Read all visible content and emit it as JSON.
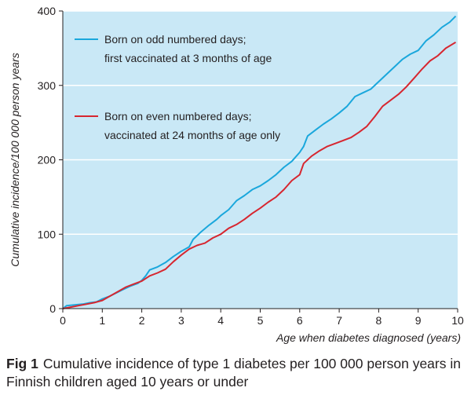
{
  "chart_data": {
    "type": "line",
    "title": "",
    "xlabel": "Age when diabetes diagnosed (years)",
    "ylabel": "Cumulative incidence/100 000 person years",
    "xlim": [
      0,
      10
    ],
    "ylim": [
      0,
      400
    ],
    "x_ticks": [
      0,
      1,
      2,
      3,
      4,
      5,
      6,
      7,
      8,
      9,
      10
    ],
    "y_ticks": [
      0,
      100,
      200,
      300,
      400
    ],
    "grid": "horizontal",
    "legend_placement": "top-left",
    "background_color": "#c9e8f6",
    "series": [
      {
        "name": "Born on odd numbered days; first vaccinated at 3 months of age",
        "legend_lines": [
          "Born on odd numbered days;",
          "first vaccinated at 3 months of age"
        ],
        "color": "#1aa7dc",
        "points": [
          [
            0,
            0
          ],
          [
            0.1,
            4
          ],
          [
            0.3,
            5
          ],
          [
            0.5,
            6
          ],
          [
            0.7,
            8
          ],
          [
            0.85,
            9
          ],
          [
            1.0,
            13
          ],
          [
            1.2,
            17
          ],
          [
            1.5,
            25
          ],
          [
            1.7,
            30
          ],
          [
            1.9,
            34
          ],
          [
            2.0,
            38
          ],
          [
            2.1,
            44
          ],
          [
            2.2,
            52
          ],
          [
            2.4,
            56
          ],
          [
            2.6,
            62
          ],
          [
            2.8,
            70
          ],
          [
            3.0,
            77
          ],
          [
            3.2,
            83
          ],
          [
            3.3,
            93
          ],
          [
            3.5,
            103
          ],
          [
            3.7,
            112
          ],
          [
            3.9,
            120
          ],
          [
            4.0,
            125
          ],
          [
            4.2,
            133
          ],
          [
            4.4,
            145
          ],
          [
            4.6,
            152
          ],
          [
            4.8,
            160
          ],
          [
            5.0,
            165
          ],
          [
            5.2,
            172
          ],
          [
            5.4,
            180
          ],
          [
            5.6,
            190
          ],
          [
            5.8,
            198
          ],
          [
            6.0,
            210
          ],
          [
            6.1,
            218
          ],
          [
            6.2,
            232
          ],
          [
            6.4,
            240
          ],
          [
            6.6,
            248
          ],
          [
            6.8,
            255
          ],
          [
            7.0,
            263
          ],
          [
            7.2,
            272
          ],
          [
            7.4,
            285
          ],
          [
            7.6,
            290
          ],
          [
            7.8,
            295
          ],
          [
            8.0,
            305
          ],
          [
            8.2,
            315
          ],
          [
            8.4,
            325
          ],
          [
            8.6,
            335
          ],
          [
            8.8,
            342
          ],
          [
            9.0,
            347
          ],
          [
            9.2,
            360
          ],
          [
            9.4,
            368
          ],
          [
            9.6,
            378
          ],
          [
            9.8,
            385
          ],
          [
            9.95,
            393
          ]
        ]
      },
      {
        "name": "Born on even numbered days; vaccinated at 24 months of age only",
        "legend_lines": [
          "Born on even numbered days;",
          "vaccinated at 24 months of age only"
        ],
        "color": "#d7262f",
        "points": [
          [
            0,
            0
          ],
          [
            0.2,
            2
          ],
          [
            0.4,
            4
          ],
          [
            0.6,
            6
          ],
          [
            0.8,
            8
          ],
          [
            1.0,
            11
          ],
          [
            1.2,
            17
          ],
          [
            1.4,
            23
          ],
          [
            1.6,
            29
          ],
          [
            1.8,
            33
          ],
          [
            2.0,
            37
          ],
          [
            2.2,
            44
          ],
          [
            2.4,
            48
          ],
          [
            2.6,
            53
          ],
          [
            2.8,
            63
          ],
          [
            3.0,
            72
          ],
          [
            3.2,
            80
          ],
          [
            3.4,
            85
          ],
          [
            3.6,
            88
          ],
          [
            3.8,
            95
          ],
          [
            4.0,
            100
          ],
          [
            4.2,
            108
          ],
          [
            4.4,
            113
          ],
          [
            4.6,
            120
          ],
          [
            4.8,
            128
          ],
          [
            5.0,
            135
          ],
          [
            5.2,
            143
          ],
          [
            5.4,
            150
          ],
          [
            5.6,
            160
          ],
          [
            5.8,
            172
          ],
          [
            6.0,
            180
          ],
          [
            6.1,
            195
          ],
          [
            6.3,
            205
          ],
          [
            6.5,
            212
          ],
          [
            6.7,
            218
          ],
          [
            6.9,
            222
          ],
          [
            7.1,
            226
          ],
          [
            7.3,
            230
          ],
          [
            7.5,
            237
          ],
          [
            7.7,
            245
          ],
          [
            7.9,
            258
          ],
          [
            8.1,
            272
          ],
          [
            8.3,
            280
          ],
          [
            8.5,
            288
          ],
          [
            8.7,
            298
          ],
          [
            8.9,
            310
          ],
          [
            9.1,
            322
          ],
          [
            9.3,
            333
          ],
          [
            9.5,
            340
          ],
          [
            9.7,
            350
          ],
          [
            9.95,
            358
          ]
        ]
      }
    ]
  },
  "caption": {
    "fig_label": "Fig 1",
    "text": "Cumulative incidence of type 1 diabetes per 100 000 person years in Finnish children aged 10 years or under"
  }
}
